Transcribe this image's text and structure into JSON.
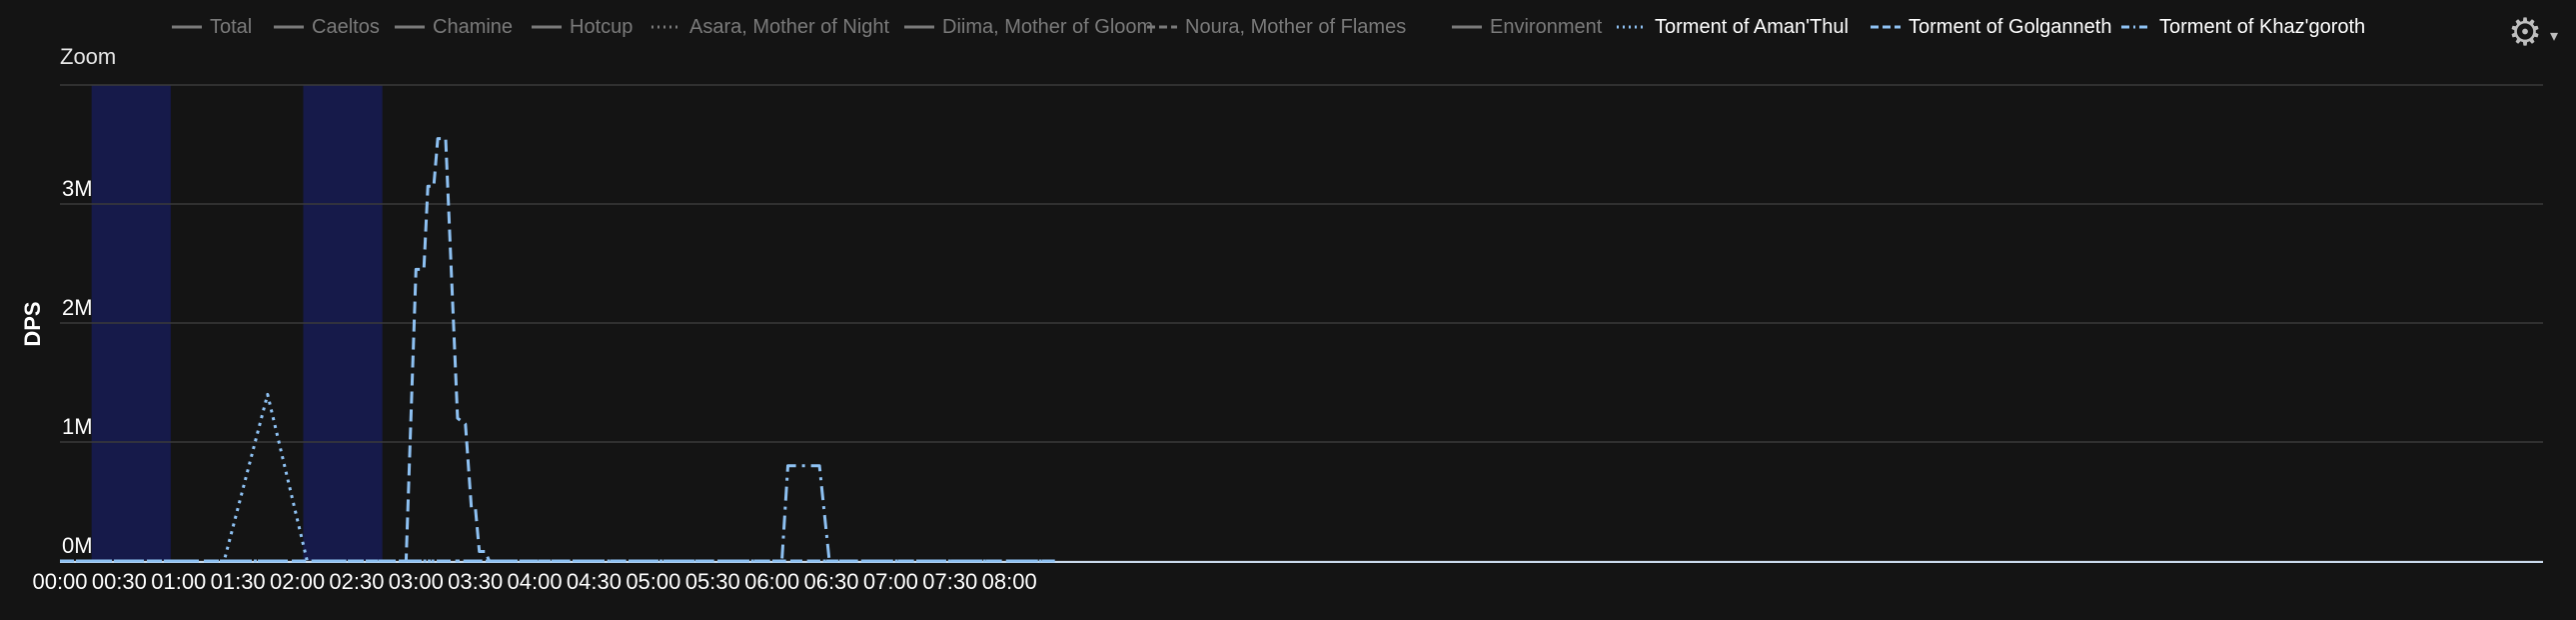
{
  "header": {
    "zoom_label": "Zoom",
    "settings_icon": "gear-icon",
    "menu_icon": "caret-down-icon"
  },
  "chart_data": {
    "type": "line",
    "ylabel": "DPS",
    "xlabel": "",
    "x_unit": "mm:ss",
    "x_ticks": [
      "00:00",
      "00:30",
      "01:00",
      "01:30",
      "02:00",
      "02:30",
      "03:00",
      "03:30",
      "04:00",
      "04:30",
      "05:00",
      "05:30",
      "06:00",
      "06:30",
      "07:00",
      "07:30",
      "08:00"
    ],
    "x_range": [
      "00:00",
      "08:23"
    ],
    "y_ticks": [
      "0M",
      "1M",
      "2M",
      "3M"
    ],
    "ylim": [
      0,
      4000000
    ],
    "grid": "horizontal",
    "legend_position": "top",
    "colors": {
      "background": "#141414",
      "grid": "#3a3a3a",
      "band": "#161a4a",
      "active_series": "#8ec1f2",
      "inactive_legend": "#7a7a7a"
    },
    "shaded_ranges": [
      [
        "00:16",
        "00:56"
      ],
      [
        "02:03",
        "02:43"
      ]
    ],
    "legend": [
      {
        "name": "Total",
        "style": "solid",
        "active": false
      },
      {
        "name": "Caeltos",
        "style": "solid",
        "active": false
      },
      {
        "name": "Chamine",
        "style": "solid",
        "active": false
      },
      {
        "name": "Hotcup",
        "style": "solid",
        "active": false
      },
      {
        "name": "Asara, Mother of Night",
        "style": "dotted",
        "active": false
      },
      {
        "name": "Diima, Mother of Gloom",
        "style": "solid",
        "active": false
      },
      {
        "name": "Noura, Mother of Flames",
        "style": "dashed",
        "active": false
      },
      {
        "name": "Environment",
        "style": "solid",
        "active": false
      },
      {
        "name": "Torment of Aman'Thul",
        "style": "dotted",
        "active": true
      },
      {
        "name": "Torment of Golganneth",
        "style": "dashed",
        "active": true
      },
      {
        "name": "Torment of Khaz'goroth",
        "style": "dashdot",
        "active": true
      }
    ],
    "series": [
      {
        "name": "Torment of Aman'Thul",
        "style": "dotted",
        "points": [
          [
            "00:00",
            0
          ],
          [
            "01:23",
            0
          ],
          [
            "01:45",
            1400000
          ],
          [
            "02:05",
            0
          ],
          [
            "08:23",
            0
          ]
        ]
      },
      {
        "name": "Torment of Golganneth",
        "style": "dashed",
        "points": [
          [
            "00:00",
            0
          ],
          [
            "02:55",
            0
          ],
          [
            "03:00",
            2450000
          ],
          [
            "03:04",
            2450000
          ],
          [
            "03:06",
            3150000
          ],
          [
            "03:09",
            3150000
          ],
          [
            "03:11",
            3550000
          ],
          [
            "03:15",
            3550000
          ],
          [
            "03:21",
            1200000
          ],
          [
            "03:25",
            1150000
          ],
          [
            "03:28",
            450000
          ],
          [
            "03:30",
            450000
          ],
          [
            "03:32",
            80000
          ],
          [
            "03:35",
            80000
          ],
          [
            "03:37",
            0
          ],
          [
            "08:23",
            0
          ]
        ]
      },
      {
        "name": "Torment of Khaz'goroth",
        "style": "dashdot",
        "points": [
          [
            "00:00",
            0
          ],
          [
            "06:05",
            0
          ],
          [
            "06:08",
            800000
          ],
          [
            "06:24",
            800000
          ],
          [
            "06:29",
            0
          ],
          [
            "08:23",
            0
          ]
        ]
      }
    ]
  }
}
